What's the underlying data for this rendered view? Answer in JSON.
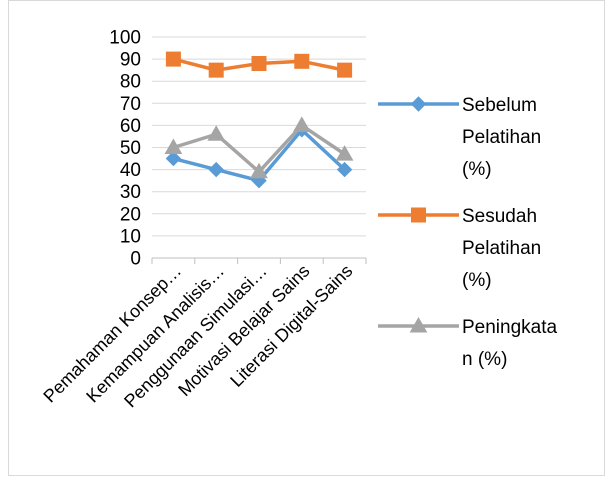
{
  "chart_data": {
    "type": "line",
    "title": "",
    "xlabel": "",
    "ylabel": "",
    "ylim": [
      0,
      100
    ],
    "yticks": [
      "0",
      "10",
      "20",
      "30",
      "40",
      "50",
      "60",
      "70",
      "80",
      "90",
      "100"
    ],
    "grid": "horizontal",
    "legend_position": "right",
    "categories": [
      "Pemahaman Konsep…",
      "Kemampuan Analisis…",
      "Penggunaan Simulasi…",
      "Motivasi Belajar Sains",
      "Literasi Digital-Sains"
    ],
    "series": [
      {
        "name": "Sebelum Pelatihan (%)",
        "legend_lines": [
          "Sebelum",
          "Pelatihan",
          "(%)"
        ],
        "color": "#5b9bd5",
        "marker": "diamond",
        "values": [
          45,
          40,
          35,
          58,
          40
        ]
      },
      {
        "name": "Sesudah Pelatihan (%)",
        "legend_lines": [
          "Sesudah",
          "Pelatihan",
          "(%)"
        ],
        "color": "#ed7d31",
        "marker": "square",
        "values": [
          90,
          85,
          88,
          89,
          85
        ]
      },
      {
        "name": "Peningkatan (%)",
        "legend_lines": [
          "Peningkata",
          "n (%)"
        ],
        "color": "#a5a5a5",
        "marker": "triangle",
        "values": [
          50,
          56,
          39,
          60,
          47
        ]
      }
    ]
  }
}
